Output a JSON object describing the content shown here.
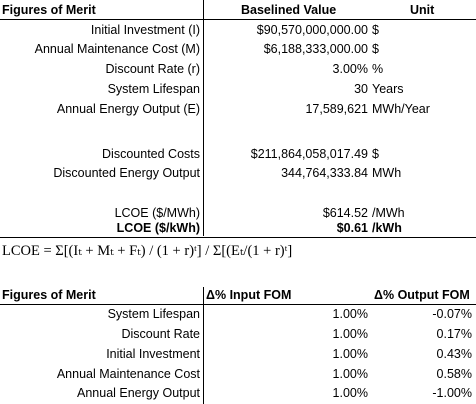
{
  "table1": {
    "header": {
      "label": "Figures of Merit",
      "value": "Baselined Value",
      "unit": "Unit"
    },
    "rows": [
      {
        "label": "Initial Investment (I)",
        "value": "$90,570,000,000.00",
        "unit": "$"
      },
      {
        "label": "Annual Maintenance Cost (M)",
        "value": "$6,188,333,000.00",
        "unit": "$"
      },
      {
        "label": "Discount Rate (r)",
        "value": "3.00%",
        "unit": "%"
      },
      {
        "label": "System Lifespan",
        "value": "30",
        "unit": "Years"
      },
      {
        "label": "Annual Energy Output (E)",
        "value": "17,589,621",
        "unit": "MWh/Year"
      }
    ],
    "discounted": [
      {
        "label": "Discounted Costs",
        "value": "$211,864,058,017.49",
        "unit": "$"
      },
      {
        "label": "Discounted Energy Output",
        "value": "344,764,333.84",
        "unit": "MWh"
      }
    ],
    "lcoe": [
      {
        "label": "LCOE ($/MWh)",
        "value": "$614.52",
        "unit": "/MWh"
      },
      {
        "label": "LCOE ($/kWh)",
        "value": "$0.61",
        "unit": "/kWh"
      }
    ]
  },
  "formula": "LCOE = Σ[(Iₜ + Mₜ + Fₜ) / (1 + r)ᵗ] / Σ[(Eₜ/(1 + r)ᵗ]",
  "table2": {
    "header": {
      "label": "Figures of Merit",
      "input": "Δ% Input FOM",
      "output": "Δ% Output FOM"
    },
    "rows": [
      {
        "label": "System Lifespan",
        "input": "1.00%",
        "output": "-0.07%"
      },
      {
        "label": "Discount Rate",
        "input": "1.00%",
        "output": "0.17%"
      },
      {
        "label": "Initial Investment",
        "input": "1.00%",
        "output": "0.43%"
      },
      {
        "label": "Annual Maintenance Cost",
        "input": "1.00%",
        "output": "0.58%"
      },
      {
        "label": "Annual Energy Output",
        "input": "1.00%",
        "output": "-1.00%"
      }
    ]
  }
}
